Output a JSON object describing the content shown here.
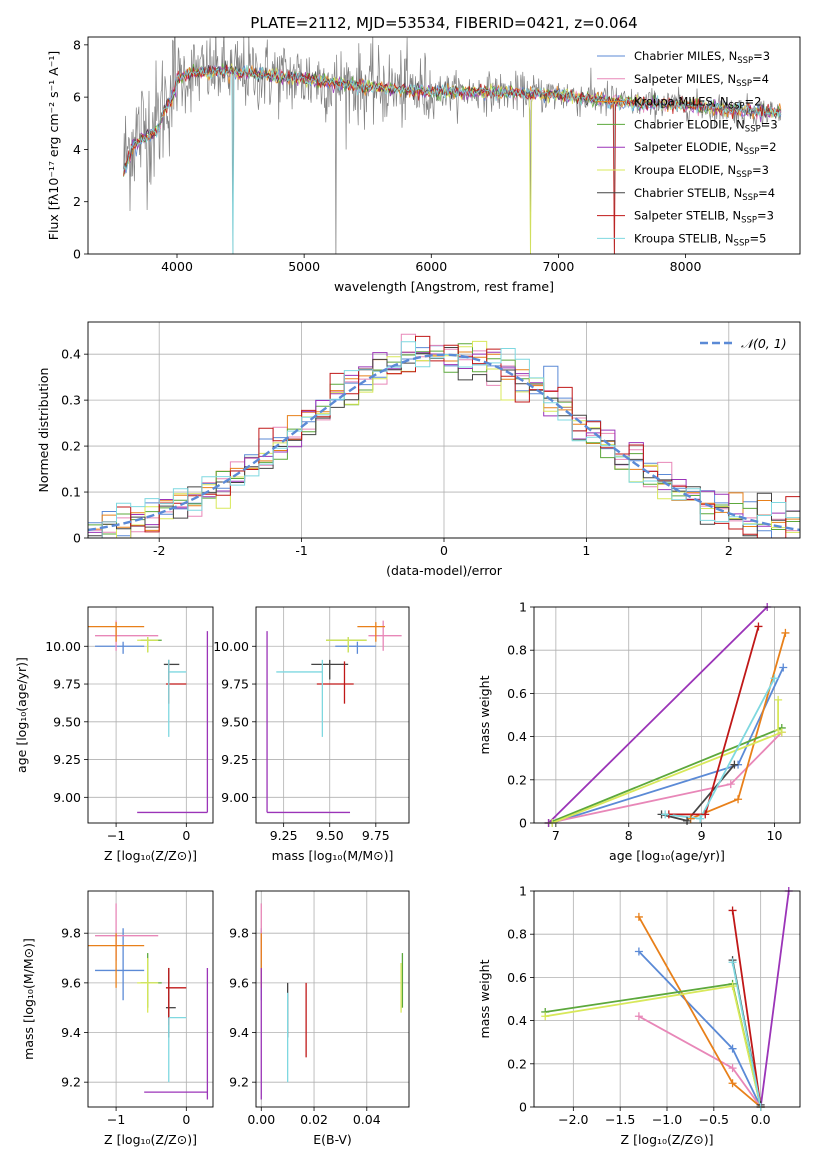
{
  "figure": {
    "title": "PLATE=2112, MJD=53534, FIBERID=0421, z=0.064"
  },
  "models": [
    {
      "name": "Chabrier MILES",
      "nssp": "3",
      "color": "#5b8ad6"
    },
    {
      "name": "Salpeter MILES",
      "nssp": "4",
      "color": "#e887b8"
    },
    {
      "name": "Kroupa MILES",
      "nssp": "2",
      "color": "#e8801a"
    },
    {
      "name": "Chabrier ELODIE",
      "nssp": "3",
      "color": "#5ca83c"
    },
    {
      "name": "Salpeter ELODIE",
      "nssp": "2",
      "color": "#9b34b8"
    },
    {
      "name": "Kroupa ELODIE",
      "nssp": "3",
      "color": "#d8e85a"
    },
    {
      "name": "Chabrier STELIB",
      "nssp": "4",
      "color": "#444444"
    },
    {
      "name": "Salpeter STELIB",
      "nssp": "3",
      "color": "#c01818"
    },
    {
      "name": "Kroupa STELIB",
      "nssp": "5",
      "color": "#7fd8e0"
    }
  ],
  "chart_data": [
    {
      "id": "spectrum",
      "type": "line",
      "xlabel": "wavelength [Angstrom, rest frame]",
      "ylabel": "Flux [fλ10⁻¹⁷ erg cm⁻² s⁻¹ A⁻¹]",
      "xlim": [
        3300,
        8900
      ],
      "ylim": [
        0,
        8.3
      ],
      "xticks": [
        4000,
        5000,
        6000,
        7000,
        8000
      ],
      "yticks": [
        0,
        2,
        4,
        6,
        8
      ],
      "data_color": "#808080",
      "continuum_knots": {
        "x": [
          3580,
          3650,
          3750,
          3850,
          3900,
          3950,
          4000,
          4100,
          4300,
          4600,
          5000,
          5500,
          6000,
          6500,
          7000,
          7500,
          8000,
          8400,
          8800
        ],
        "y": [
          3.4,
          4.4,
          4.8,
          5.0,
          5.8,
          6.2,
          6.7,
          6.9,
          7.0,
          6.9,
          6.7,
          6.4,
          6.2,
          6.2,
          6.1,
          5.8,
          5.7,
          5.5,
          5.4
        ]
      },
      "deep_lines_x": [
        4440,
        5250,
        6780,
        7440
      ]
    },
    {
      "id": "residuals",
      "type": "histogram",
      "xlabel": "(data-model)/error",
      "ylabel": "Normed distribution",
      "xlim": [
        -2.5,
        2.5
      ],
      "ylim": [
        0,
        0.47
      ],
      "xticks": [
        -2,
        -1,
        0,
        1,
        2
      ],
      "yticks": [
        0.0,
        0.1,
        0.2,
        0.3,
        0.4
      ],
      "bin_edges_start": -2.5,
      "bin_width": 0.1,
      "n_bins": 50,
      "reference_label": "𝒩(0, 1)",
      "reference_color": "#5b8ad6"
    },
    {
      "id": "age_vs_Z",
      "type": "errorbar",
      "xlabel": "Z [log₁₀(Z/Z⊙)]",
      "ylabel": "age  [log₁₀(age/yr)]",
      "xlim": [
        -1.4,
        0.38
      ],
      "ylim": [
        8.83,
        10.26
      ],
      "xticks": [
        -1,
        0
      ],
      "xticklabels": [
        "−1",
        "0"
      ],
      "yticks": [
        9.0,
        9.25,
        9.5,
        9.75,
        10.0
      ],
      "yticklabels": [
        "9.00",
        "9.25",
        "9.50",
        "9.75",
        "10.00"
      ],
      "points": [
        {
          "model": 0,
          "x": -0.9,
          "xerr": [
            0.4,
            0.3
          ],
          "y": 10.0,
          "yerr": [
            0.05,
            0.03
          ]
        },
        {
          "model": 1,
          "x": -1.0,
          "xerr": [
            0.3,
            0.6
          ],
          "y": 10.07,
          "yerr": [
            0.1,
            0.1
          ]
        },
        {
          "model": 2,
          "x": -1.0,
          "xerr": [
            0.4,
            0.4
          ],
          "y": 10.13,
          "yerr": [
            0.1,
            0.03
          ]
        },
        {
          "model": 3,
          "x": -0.55,
          "xerr": [
            0.1,
            0.2
          ],
          "y": 10.04,
          "yerr": [
            0.08,
            0.02
          ]
        },
        {
          "model": 4,
          "x": 0.3,
          "xerr": [
            1.0,
            0.0
          ],
          "y": 8.9,
          "yerr": [
            0.0,
            1.2
          ]
        },
        {
          "model": 5,
          "x": -0.55,
          "xerr": [
            0.15,
            0.15
          ],
          "y": 10.04,
          "yerr": [
            0.08,
            0.02
          ]
        },
        {
          "model": 6,
          "x": -0.25,
          "xerr": [
            0.07,
            0.15
          ],
          "y": 9.88,
          "yerr": [
            0.1,
            0.03
          ]
        },
        {
          "model": 7,
          "x": -0.25,
          "xerr": [
            0.04,
            0.25
          ],
          "y": 9.75,
          "yerr": [
            0.13,
            0.15
          ]
        },
        {
          "model": 8,
          "x": -0.25,
          "xerr": [
            0.0,
            0.25
          ],
          "y": 9.83,
          "yerr": [
            0.43,
            0.08
          ]
        }
      ]
    },
    {
      "id": "age_vs_mass",
      "type": "errorbar",
      "xlabel": "mass [log₁₀(M/M⊙)]",
      "ylabel": "",
      "xlim": [
        9.1,
        9.93
      ],
      "ylim": [
        8.83,
        10.26
      ],
      "xticks": [
        9.25,
        9.5,
        9.75
      ],
      "xticklabels": [
        "9.25",
        "9.50",
        "9.75"
      ],
      "yticks": [
        9.0,
        9.25,
        9.5,
        9.75,
        10.0
      ],
      "yticklabels": [
        "9.00",
        "9.25",
        "9.50",
        "9.75",
        "10.00"
      ],
      "points": [
        {
          "model": 0,
          "x": 9.65,
          "xerr": [
            0.12,
            0.1
          ],
          "y": 10.0,
          "yerr": [
            0.05,
            0.03
          ]
        },
        {
          "model": 1,
          "x": 9.79,
          "xerr": [
            0.08,
            0.1
          ],
          "y": 10.07,
          "yerr": [
            0.1,
            0.1
          ]
        },
        {
          "model": 2,
          "x": 9.75,
          "xerr": [
            0.1,
            0.05
          ],
          "y": 10.13,
          "yerr": [
            0.1,
            0.03
          ]
        },
        {
          "model": 3,
          "x": 9.6,
          "xerr": [
            0.12,
            0.1
          ],
          "y": 10.04,
          "yerr": [
            0.08,
            0.02
          ]
        },
        {
          "model": 4,
          "x": 9.16,
          "xerr": [
            0.0,
            0.45
          ],
          "y": 8.9,
          "yerr": [
            0.0,
            1.2
          ]
        },
        {
          "model": 5,
          "x": 9.6,
          "xerr": [
            0.12,
            0.1
          ],
          "y": 10.04,
          "yerr": [
            0.08,
            0.02
          ]
        },
        {
          "model": 6,
          "x": 9.5,
          "xerr": [
            0.1,
            0.1
          ],
          "y": 9.88,
          "yerr": [
            0.1,
            0.03
          ]
        },
        {
          "model": 7,
          "x": 9.58,
          "xerr": [
            0.15,
            0.05
          ],
          "y": 9.75,
          "yerr": [
            0.13,
            0.15
          ]
        },
        {
          "model": 8,
          "x": 9.46,
          "xerr": [
            0.25,
            0.0
          ],
          "y": 9.83,
          "yerr": [
            0.43,
            0.08
          ]
        }
      ]
    },
    {
      "id": "weight_vs_age",
      "type": "line",
      "xlabel": "age  [log₁₀(age/yr)]",
      "ylabel": "mass weight",
      "xlim": [
        6.7,
        10.35
      ],
      "ylim": [
        0,
        1.0
      ],
      "xticks": [
        7,
        8,
        9,
        10
      ],
      "yticks": [
        0.0,
        0.2,
        0.4,
        0.6,
        0.8,
        1.0
      ],
      "series": [
        {
          "model": 0,
          "x": [
            6.95,
            9.5,
            10.12
          ],
          "y": [
            0.0,
            0.27,
            0.72
          ]
        },
        {
          "model": 1,
          "x": [
            6.9,
            9.4,
            10.1
          ],
          "y": [
            0.0,
            0.18,
            0.42
          ]
        },
        {
          "model": 2,
          "x": [
            8.85,
            9.5,
            10.15
          ],
          "y": [
            0.02,
            0.11,
            0.88
          ]
        },
        {
          "model": 3,
          "x": [
            6.9,
            10.1
          ],
          "y": [
            0.0,
            0.44
          ]
        },
        {
          "model": 4,
          "x": [
            6.9,
            9.9
          ],
          "y": [
            0.0,
            1.0
          ]
        },
        {
          "model": 5,
          "x": [
            6.95,
            10.1
          ],
          "y": [
            0.0,
            0.42
          ]
        },
        {
          "model": 6,
          "x": [
            8.45,
            8.8,
            9.45
          ],
          "y": [
            0.04,
            0.01,
            0.27
          ]
        },
        {
          "model": 7,
          "x": [
            8.55,
            9.05,
            9.78
          ],
          "y": [
            0.04,
            0.04,
            0.91
          ]
        },
        {
          "model": 8,
          "x": [
            8.5,
            8.98,
            10.0
          ],
          "y": [
            0.04,
            0.02,
            0.67
          ]
        },
        {
          "model": 5,
          "x": [
            10.05,
            10.05
          ],
          "y": [
            0.43,
            0.57
          ]
        }
      ]
    },
    {
      "id": "mass_vs_Z",
      "type": "errorbar",
      "xlabel": "Z [log₁₀(Z/Z⊙)]",
      "ylabel": "mass [log₁₀(M/M⊙)]",
      "xlim": [
        -1.4,
        0.38
      ],
      "ylim": [
        9.1,
        9.97
      ],
      "xticks": [
        -1,
        0
      ],
      "xticklabels": [
        "−1",
        "0"
      ],
      "yticks": [
        9.2,
        9.4,
        9.6,
        9.8
      ],
      "yticklabels": [
        "9.2",
        "9.4",
        "9.6",
        "9.8"
      ],
      "points": [
        {
          "model": 0,
          "x": -0.9,
          "xerr": [
            0.4,
            0.3
          ],
          "y": 9.65,
          "yerr": [
            0.12,
            0.17
          ]
        },
        {
          "model": 1,
          "x": -1.0,
          "xerr": [
            0.3,
            0.6
          ],
          "y": 9.79,
          "yerr": [
            0.1,
            0.13
          ]
        },
        {
          "model": 2,
          "x": -1.0,
          "xerr": [
            0.4,
            0.4
          ],
          "y": 9.75,
          "yerr": [
            0.17,
            0.05
          ]
        },
        {
          "model": 3,
          "x": -0.55,
          "xerr": [
            0.1,
            0.2
          ],
          "y": 9.6,
          "yerr": [
            0.1,
            0.12
          ]
        },
        {
          "model": 4,
          "x": 0.3,
          "xerr": [
            0.9,
            0.0
          ],
          "y": 9.16,
          "yerr": [
            0.03,
            0.5
          ]
        },
        {
          "model": 5,
          "x": -0.55,
          "xerr": [
            0.15,
            0.15
          ],
          "y": 9.6,
          "yerr": [
            0.12,
            0.1
          ]
        },
        {
          "model": 6,
          "x": -0.25,
          "xerr": [
            0.04,
            0.1
          ],
          "y": 9.5,
          "yerr": [
            0.12,
            0.16
          ]
        },
        {
          "model": 7,
          "x": -0.25,
          "xerr": [
            0.04,
            0.25
          ],
          "y": 9.58,
          "yerr": [
            0.15,
            0.08
          ]
        },
        {
          "model": 8,
          "x": -0.25,
          "xerr": [
            0.0,
            0.25
          ],
          "y": 9.46,
          "yerr": [
            0.26,
            0.0
          ]
        }
      ]
    },
    {
      "id": "mass_vs_EBV",
      "type": "errorbar",
      "xlabel": "E(B-V)",
      "ylabel": "",
      "xlim": [
        -0.002,
        0.056
      ],
      "ylim": [
        9.1,
        9.97
      ],
      "xticks": [
        0.0,
        0.02,
        0.04
      ],
      "xticklabels": [
        "0.00",
        "0.02",
        "0.04"
      ],
      "yticks": [
        9.2,
        9.4,
        9.6,
        9.8
      ],
      "yticklabels": [
        "9.2",
        "9.4",
        "9.6",
        "9.8"
      ],
      "points": [
        {
          "model": 0,
          "x": 0.0,
          "y": 9.65,
          "yerr": [
            0.12,
            0.17
          ]
        },
        {
          "model": 1,
          "x": 0.0,
          "y": 9.79,
          "yerr": [
            0.1,
            0.13
          ]
        },
        {
          "model": 2,
          "x": 0.0,
          "y": 9.75,
          "yerr": [
            0.17,
            0.05
          ]
        },
        {
          "model": 3,
          "x": 0.0535,
          "y": 9.6,
          "yerr": [
            0.1,
            0.12
          ]
        },
        {
          "model": 4,
          "x": 0.0,
          "y": 9.16,
          "yerr": [
            0.03,
            0.5
          ]
        },
        {
          "model": 5,
          "x": 0.053,
          "y": 9.6,
          "yerr": [
            0.12,
            0.08
          ]
        },
        {
          "model": 6,
          "x": 0.01,
          "y": 9.5,
          "yerr": [
            0.12,
            0.1
          ]
        },
        {
          "model": 7,
          "x": 0.017,
          "y": 9.5,
          "yerr": [
            0.2,
            0.1
          ]
        },
        {
          "model": 8,
          "x": 0.01,
          "y": 9.46,
          "yerr": [
            0.26,
            0.1
          ]
        }
      ]
    },
    {
      "id": "weight_vs_Z",
      "type": "line",
      "xlabel": "Z [log₁₀(Z/Z⊙)]",
      "ylabel": "mass weight",
      "xlim": [
        -2.42,
        0.42
      ],
      "ylim": [
        0,
        1.0
      ],
      "xticks": [
        -2.0,
        -1.5,
        -1.0,
        -0.5,
        0.0
      ],
      "xticklabels": [
        "−2.0",
        "−1.5",
        "−1.0",
        "−0.5",
        "0.0"
      ],
      "yticks": [
        0.0,
        0.2,
        0.4,
        0.6,
        0.8,
        1.0
      ],
      "series": [
        {
          "model": 0,
          "x": [
            -1.3,
            -0.3,
            0.0
          ],
          "y": [
            0.72,
            0.27,
            0.0
          ]
        },
        {
          "model": 1,
          "x": [
            -1.3,
            -0.3,
            0.0
          ],
          "y": [
            0.42,
            0.18,
            0.0
          ]
        },
        {
          "model": 2,
          "x": [
            -1.3,
            -0.3,
            0.0
          ],
          "y": [
            0.88,
            0.11,
            0.0
          ]
        },
        {
          "model": 3,
          "x": [
            -2.3,
            -0.3,
            0.0
          ],
          "y": [
            0.44,
            0.57,
            0.0
          ]
        },
        {
          "model": 4,
          "x": [
            0.0,
            0.3
          ],
          "y": [
            0.0,
            1.0
          ]
        },
        {
          "model": 5,
          "x": [
            -2.3,
            -0.3,
            0.0
          ],
          "y": [
            0.42,
            0.56,
            0.0
          ]
        },
        {
          "model": 6,
          "x": [
            -0.3,
            0.0
          ],
          "y": [
            0.68,
            0.01
          ]
        },
        {
          "model": 7,
          "x": [
            -0.3,
            0.0
          ],
          "y": [
            0.91,
            0.0
          ]
        },
        {
          "model": 8,
          "x": [
            -0.3,
            0.0
          ],
          "y": [
            0.67,
            0.0
          ]
        }
      ]
    }
  ]
}
